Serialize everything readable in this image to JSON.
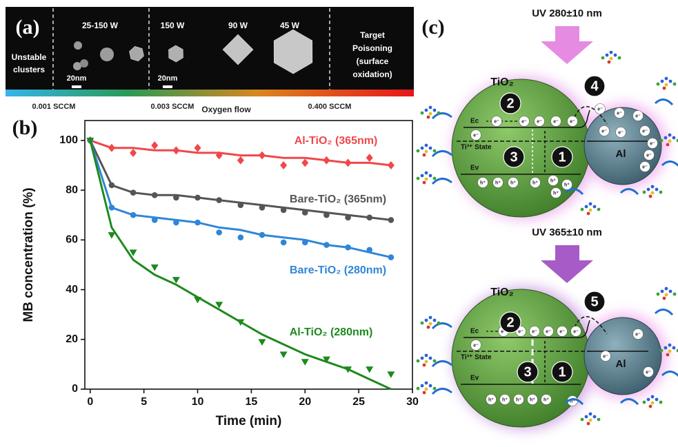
{
  "panel_a": {
    "label": "(a)",
    "unstable": [
      "Unstable",
      "clusters"
    ],
    "powers": [
      "25-150 W",
      "150 W",
      "90 W",
      "45 W"
    ],
    "target": [
      "Target",
      "Poisoning",
      "(surface",
      "oxidation)"
    ],
    "scale_bars": [
      "20nm",
      "20nm"
    ],
    "flow_labels": [
      "0.001 SCCM",
      "0.003 SCCM",
      "0.400 SCCM"
    ],
    "flow_title": "Oxygen flow"
  },
  "chart_data": {
    "type": "line",
    "label": "(b)",
    "x_label": "Time (min)",
    "y_label": "MB concentration (%)",
    "x": [
      0,
      2,
      4,
      6,
      8,
      10,
      12,
      14,
      16,
      18,
      20,
      22,
      24,
      26,
      28
    ],
    "xlim": [
      -0.5,
      30
    ],
    "ylim": [
      0,
      108
    ],
    "xticks": [
      0,
      5,
      10,
      15,
      20,
      25,
      30
    ],
    "yticks": [
      0,
      20,
      40,
      60,
      80,
      100
    ],
    "series": [
      {
        "name": "Al-TiO₂ (365nm)",
        "color": "#f0474a",
        "marker": "diamond",
        "values": [
          100,
          97,
          95,
          98,
          96,
          97,
          94,
          92,
          94,
          90,
          91,
          92,
          91,
          93,
          90
        ],
        "fit": [
          100,
          97,
          97,
          96,
          96,
          95,
          95,
          94,
          94,
          93,
          93,
          92,
          91,
          91,
          90
        ]
      },
      {
        "name": "Bare-TiO₂ (365nm)",
        "color": "#555555",
        "marker": "circle",
        "values": [
          100,
          82,
          79,
          78,
          77,
          77,
          76,
          74,
          73,
          72,
          71,
          70,
          69,
          69,
          68
        ],
        "fit": [
          100,
          82,
          79,
          78,
          78,
          77,
          76,
          75,
          74,
          73,
          72,
          71,
          70,
          69,
          68
        ]
      },
      {
        "name": "Bare-TiO₂ (280nm)",
        "color": "#2e86d8",
        "marker": "circle",
        "values": [
          100,
          73,
          70,
          68,
          67,
          67,
          63,
          61,
          62,
          59,
          59,
          58,
          57,
          56,
          53
        ],
        "fit": [
          100,
          73,
          70,
          69,
          68,
          67,
          65,
          64,
          62,
          61,
          60,
          58,
          57,
          55,
          53
        ]
      },
      {
        "name": "Al-TiO₂ (280nm)",
        "color": "#1d8a1d",
        "marker": "triangle-down",
        "values": [
          100,
          62,
          55,
          49,
          44,
          36,
          34,
          27,
          19,
          14,
          11,
          12,
          8,
          8,
          6
        ],
        "fit": [
          100,
          65,
          52,
          46,
          42,
          37,
          32,
          27,
          22,
          18,
          14,
          11,
          8,
          4,
          0
        ]
      }
    ]
  },
  "panel_c": {
    "label": "(c)",
    "electron": "e⁻",
    "hole": "h⁺",
    "ti3_state": "Ti³⁺ State",
    "ec": "Ec",
    "ev": "Ev",
    "scenes": [
      {
        "uv": "UV 280±10 nm",
        "material": "TiO₂",
        "metal": "Al",
        "steps": [
          "1",
          "2",
          "3",
          "4"
        ]
      },
      {
        "uv": "UV 365±10 nm",
        "material": "TiO₂",
        "metal": "Al",
        "steps": [
          "1",
          "2",
          "3",
          "5"
        ]
      }
    ]
  }
}
